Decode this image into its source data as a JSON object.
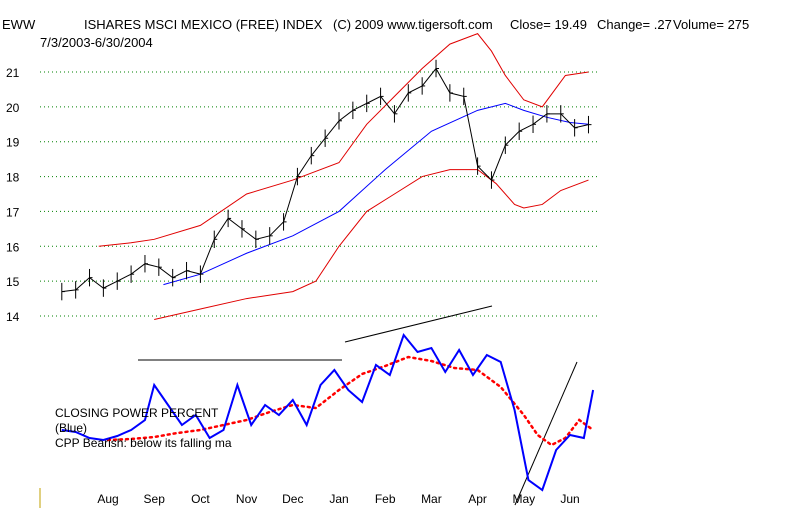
{
  "chart_data": {
    "type": "ohlc_with_indicator",
    "header": {
      "symbol": "EWW",
      "name": "ISHARES MSCI MEXICO (FREE) INDEX",
      "copyright": "(C) 2009 www.tigersoft.com",
      "close": "Close=  19.49",
      "change": "Change= .27",
      "volume": "Volume= 275",
      "date_range": "7/3/2003-6/30/2004"
    },
    "y_ticks": [
      "21",
      "20",
      "19",
      "18",
      "17",
      "16",
      "15",
      "14"
    ],
    "y_tick_values": [
      21,
      20,
      19,
      18,
      17,
      16,
      15,
      14
    ],
    "x_ticks": [
      "Aug",
      "Sep",
      "Oct",
      "Nov",
      "Dec",
      "Jan",
      "Feb",
      "Mar",
      "Apr",
      "May",
      "Jun"
    ],
    "x_tick_positions": [
      1,
      2,
      3,
      4,
      5,
      6,
      7,
      8,
      9,
      10,
      11
    ],
    "indicator_label": {
      "line1": "CLOSING POWER PERCENT",
      "line2": "(Blue)",
      "line3": "CPP Bearish: below its falling ma"
    },
    "colors": {
      "price_bars": "#000000",
      "band_outer": "#e00000",
      "band_inner": "#e00000",
      "ma_line": "#0000ff",
      "cpp_line": "#0000ff",
      "cpp_ma": "#ff0000",
      "grid": "#008000",
      "trendline": "#000000"
    },
    "price_series": {
      "x": [
        0.0,
        0.3,
        0.6,
        0.9,
        1.2,
        1.5,
        1.8,
        2.1,
        2.4,
        2.7,
        3.0,
        3.3,
        3.6,
        3.9,
        4.2,
        4.5,
        4.8,
        5.1,
        5.4,
        5.7,
        6.0,
        6.3,
        6.6,
        6.9,
        7.2,
        7.5,
        7.8,
        8.1,
        8.4,
        8.7,
        9.0,
        9.3,
        9.6,
        9.9,
        10.2,
        10.5,
        10.8,
        11.1,
        11.4
      ],
      "close": [
        14.7,
        14.75,
        15.1,
        14.8,
        15.0,
        15.2,
        15.5,
        15.4,
        15.1,
        15.3,
        15.2,
        16.2,
        16.8,
        16.5,
        16.2,
        16.3,
        16.7,
        18.0,
        18.6,
        19.1,
        19.6,
        19.9,
        20.1,
        20.3,
        19.8,
        20.4,
        20.6,
        21.1,
        20.4,
        20.3,
        18.3,
        17.9,
        18.9,
        19.3,
        19.5,
        19.8,
        19.8,
        19.4,
        19.49
      ]
    },
    "ma_series": {
      "x": [
        2.2,
        3.0,
        4.0,
        5.0,
        6.0,
        7.0,
        8.0,
        9.0,
        9.6,
        10.0,
        10.5,
        11.0,
        11.4
      ],
      "y": [
        14.9,
        15.2,
        15.8,
        16.3,
        17.0,
        18.2,
        19.3,
        19.9,
        20.1,
        19.9,
        19.7,
        19.55,
        19.5
      ]
    },
    "upper_band": {
      "x": [
        0.8,
        1.5,
        2.0,
        3.0,
        4.0,
        5.0,
        6.0,
        6.6,
        7.2,
        7.8,
        8.4,
        9.0,
        9.3,
        9.6,
        10.0,
        10.4,
        10.9,
        11.4
      ],
      "y": [
        16.0,
        16.1,
        16.2,
        16.6,
        17.5,
        17.9,
        18.4,
        19.5,
        20.3,
        21.1,
        21.8,
        22.1,
        21.6,
        20.9,
        20.2,
        20.0,
        20.9,
        21.0
      ]
    },
    "lower_band": {
      "x": [
        2.0,
        3.0,
        4.0,
        5.0,
        5.5,
        6.0,
        6.6,
        7.2,
        7.8,
        8.4,
        9.0,
        9.4,
        9.8,
        10.0,
        10.4,
        10.8,
        11.4
      ],
      "y": [
        13.9,
        14.2,
        14.5,
        14.7,
        15.0,
        16.0,
        17.0,
        17.5,
        18.0,
        18.2,
        18.2,
        17.8,
        17.2,
        17.1,
        17.2,
        17.6,
        17.9
      ]
    },
    "cpp_series": {
      "x": [
        0.0,
        0.3,
        0.6,
        0.9,
        1.2,
        1.5,
        1.8,
        2.0,
        2.3,
        2.6,
        2.9,
        3.2,
        3.5,
        3.8,
        4.1,
        4.4,
        4.7,
        5.0,
        5.3,
        5.6,
        5.9,
        6.2,
        6.5,
        6.8,
        7.1,
        7.4,
        7.7,
        8.0,
        8.3,
        8.6,
        8.9,
        9.2,
        9.5,
        9.8,
        10.1,
        10.4,
        10.7,
        11.0,
        11.3,
        11.5
      ],
      "y": [
        30,
        28,
        22,
        20,
        24,
        30,
        40,
        75,
        55,
        35,
        45,
        22,
        30,
        75,
        35,
        55,
        45,
        60,
        35,
        75,
        90,
        70,
        58,
        95,
        85,
        125,
        108,
        112,
        88,
        110,
        85,
        105,
        98,
        50,
        -20,
        -30,
        10,
        25,
        22,
        70
      ]
    },
    "cpp_ma": {
      "x": [
        1.0,
        1.5,
        2.0,
        2.5,
        3.0,
        3.5,
        4.0,
        4.5,
        5.0,
        5.5,
        6.0,
        6.5,
        7.0,
        7.5,
        8.0,
        8.5,
        9.0,
        9.5,
        10.0,
        10.3,
        10.6,
        10.9,
        11.2,
        11.5
      ],
      "y": [
        20,
        21,
        23,
        27,
        30,
        35,
        40,
        48,
        55,
        52,
        70,
        86,
        94,
        103,
        99,
        92,
        90,
        73,
        45,
        25,
        15,
        22,
        40,
        30
      ]
    }
  }
}
